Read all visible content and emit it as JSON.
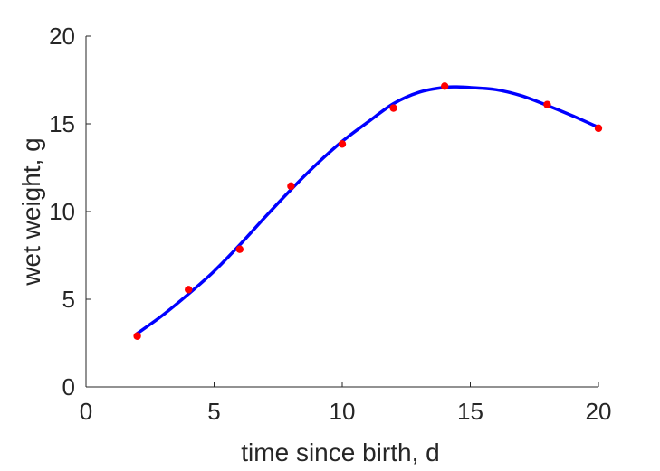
{
  "chart_data": {
    "type": "line",
    "xlabel": "time since birth, d",
    "ylabel": "wet weight, g",
    "xlim": [
      0,
      20
    ],
    "ylim": [
      0,
      20
    ],
    "xticks": [
      "0",
      "5",
      "10",
      "15",
      "20"
    ],
    "yticks": [
      "0",
      "5",
      "10",
      "15",
      "20"
    ],
    "grid": false,
    "series": [
      {
        "kind": "line",
        "color": "#0000ff",
        "x": [
          2,
          3,
          4,
          5,
          6,
          7,
          8,
          9,
          10,
          11,
          12,
          13,
          14,
          14.6,
          15,
          16,
          17,
          18,
          19,
          20
        ],
        "y": [
          3.05,
          4.1,
          5.3,
          6.6,
          8.1,
          9.7,
          11.25,
          12.7,
          14.0,
          15.1,
          16.15,
          16.8,
          17.08,
          17.1,
          17.07,
          16.95,
          16.6,
          16.05,
          15.45,
          14.8
        ]
      },
      {
        "kind": "scatter",
        "color": "#ff0000",
        "x": [
          2,
          4,
          6,
          8,
          10,
          12,
          14,
          18,
          20
        ],
        "y": [
          2.9,
          5.55,
          7.85,
          11.45,
          13.85,
          15.9,
          17.15,
          16.1,
          14.75
        ]
      }
    ]
  }
}
